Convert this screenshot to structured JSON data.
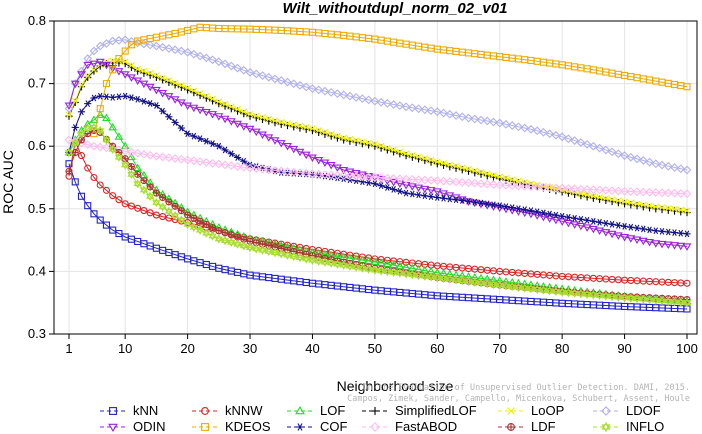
{
  "chart_data": {
    "type": "line",
    "title": "Wilt_withoutdupl_norm_02_v01",
    "xlabel": "Neighborhood size",
    "ylabel": "ROC AUC",
    "xlim": [
      1,
      100
    ],
    "ylim": [
      0.3,
      0.8
    ],
    "x_ticks": [
      1,
      10,
      20,
      30,
      40,
      50,
      60,
      70,
      80,
      90,
      100
    ],
    "y_ticks": [
      0.3,
      0.4,
      0.5,
      0.6,
      0.7,
      0.8
    ],
    "legend_position": "bottom",
    "credit_lines": [
      "Campos, Zimek, Sander, Campello, Micenkova, Schubert, Assent, Houle",
      "On the Evaluation of Unsupervised Outlier Detection. DAMI, 2015."
    ],
    "series": [
      {
        "name": "kNN",
        "color": "#2222cc",
        "marker": "square",
        "points": [
          [
            1,
            0.572
          ],
          [
            2,
            0.543
          ],
          [
            3,
            0.52
          ],
          [
            4,
            0.505
          ],
          [
            5,
            0.492
          ],
          [
            6,
            0.482
          ],
          [
            8,
            0.466
          ],
          [
            10,
            0.455
          ],
          [
            15,
            0.437
          ],
          [
            20,
            0.42
          ],
          [
            25,
            0.405
          ],
          [
            30,
            0.394
          ],
          [
            40,
            0.381
          ],
          [
            50,
            0.37
          ],
          [
            60,
            0.361
          ],
          [
            70,
            0.355
          ],
          [
            80,
            0.349
          ],
          [
            90,
            0.344
          ],
          [
            100,
            0.34
          ]
        ]
      },
      {
        "name": "kNNW",
        "color": "#dd2222",
        "marker": "circle",
        "points": [
          [
            1,
            0.552
          ],
          [
            2,
            0.607
          ],
          [
            3,
            0.585
          ],
          [
            4,
            0.565
          ],
          [
            5,
            0.55
          ],
          [
            6,
            0.538
          ],
          [
            8,
            0.521
          ],
          [
            10,
            0.508
          ],
          [
            15,
            0.49
          ],
          [
            20,
            0.478
          ],
          [
            25,
            0.465
          ],
          [
            30,
            0.452
          ],
          [
            40,
            0.435
          ],
          [
            50,
            0.42
          ],
          [
            60,
            0.409
          ],
          [
            70,
            0.4
          ],
          [
            80,
            0.392
          ],
          [
            90,
            0.386
          ],
          [
            100,
            0.381
          ]
        ]
      },
      {
        "name": "LOF",
        "color": "#22dd22",
        "marker": "triangle-up",
        "points": [
          [
            1,
            0.59
          ],
          [
            2,
            0.61
          ],
          [
            3,
            0.625
          ],
          [
            4,
            0.635
          ],
          [
            5,
            0.642
          ],
          [
            6,
            0.65
          ],
          [
            7,
            0.645
          ],
          [
            8,
            0.63
          ],
          [
            10,
            0.6
          ],
          [
            12,
            0.565
          ],
          [
            15,
            0.53
          ],
          [
            20,
            0.495
          ],
          [
            25,
            0.47
          ],
          [
            30,
            0.452
          ],
          [
            40,
            0.43
          ],
          [
            50,
            0.415
          ],
          [
            60,
            0.398
          ],
          [
            70,
            0.385
          ],
          [
            80,
            0.372
          ],
          [
            90,
            0.36
          ],
          [
            100,
            0.352
          ]
        ]
      },
      {
        "name": "SimplifiedLOF",
        "color": "#000000",
        "marker": "plus",
        "points": [
          [
            1,
            0.648
          ],
          [
            2,
            0.67
          ],
          [
            3,
            0.695
          ],
          [
            4,
            0.71
          ],
          [
            5,
            0.72
          ],
          [
            6,
            0.728
          ],
          [
            7,
            0.732
          ],
          [
            8,
            0.733
          ],
          [
            9,
            0.733
          ],
          [
            10,
            0.732
          ],
          [
            12,
            0.72
          ],
          [
            15,
            0.71
          ],
          [
            20,
            0.69
          ],
          [
            25,
            0.668
          ],
          [
            30,
            0.648
          ],
          [
            35,
            0.635
          ],
          [
            40,
            0.625
          ],
          [
            45,
            0.61
          ],
          [
            50,
            0.6
          ],
          [
            55,
            0.585
          ],
          [
            60,
            0.572
          ],
          [
            65,
            0.56
          ],
          [
            70,
            0.548
          ],
          [
            75,
            0.537
          ],
          [
            80,
            0.527
          ],
          [
            85,
            0.517
          ],
          [
            90,
            0.508
          ],
          [
            95,
            0.5
          ],
          [
            100,
            0.494
          ]
        ]
      },
      {
        "name": "LoOP",
        "color": "#eeee00",
        "marker": "cross",
        "points": [
          [
            1,
            0.65
          ],
          [
            2,
            0.672
          ],
          [
            3,
            0.698
          ],
          [
            4,
            0.712
          ],
          [
            5,
            0.722
          ],
          [
            6,
            0.73
          ],
          [
            7,
            0.735
          ],
          [
            8,
            0.736
          ],
          [
            9,
            0.736
          ],
          [
            10,
            0.735
          ],
          [
            12,
            0.723
          ],
          [
            15,
            0.713
          ],
          [
            20,
            0.693
          ],
          [
            25,
            0.671
          ],
          [
            30,
            0.651
          ],
          [
            35,
            0.638
          ],
          [
            40,
            0.628
          ],
          [
            45,
            0.613
          ],
          [
            50,
            0.603
          ],
          [
            55,
            0.588
          ],
          [
            60,
            0.575
          ],
          [
            65,
            0.563
          ],
          [
            70,
            0.551
          ],
          [
            75,
            0.54
          ],
          [
            80,
            0.53
          ],
          [
            85,
            0.52
          ],
          [
            90,
            0.511
          ],
          [
            95,
            0.503
          ],
          [
            100,
            0.497
          ]
        ]
      },
      {
        "name": "LDOF",
        "color": "#b0b0ee",
        "marker": "diamond",
        "points": [
          [
            1,
            0.66
          ],
          [
            2,
            0.7
          ],
          [
            3,
            0.72
          ],
          [
            4,
            0.74
          ],
          [
            5,
            0.752
          ],
          [
            6,
            0.76
          ],
          [
            8,
            0.768
          ],
          [
            10,
            0.77
          ],
          [
            12,
            0.765
          ],
          [
            15,
            0.76
          ],
          [
            20,
            0.75
          ],
          [
            25,
            0.735
          ],
          [
            30,
            0.718
          ],
          [
            35,
            0.705
          ],
          [
            40,
            0.692
          ],
          [
            45,
            0.682
          ],
          [
            50,
            0.672
          ],
          [
            55,
            0.663
          ],
          [
            60,
            0.655
          ],
          [
            65,
            0.645
          ],
          [
            70,
            0.637
          ],
          [
            75,
            0.627
          ],
          [
            80,
            0.615
          ],
          [
            85,
            0.6
          ],
          [
            90,
            0.585
          ],
          [
            95,
            0.572
          ],
          [
            100,
            0.562
          ]
        ]
      },
      {
        "name": "ODIN",
        "color": "#9922dd",
        "marker": "triangle-down",
        "points": [
          [
            1,
            0.665
          ],
          [
            2,
            0.7
          ],
          [
            3,
            0.715
          ],
          [
            4,
            0.73
          ],
          [
            5,
            0.732
          ],
          [
            6,
            0.735
          ],
          [
            8,
            0.725
          ],
          [
            10,
            0.715
          ],
          [
            15,
            0.69
          ],
          [
            20,
            0.665
          ],
          [
            25,
            0.648
          ],
          [
            30,
            0.628
          ],
          [
            35,
            0.605
          ],
          [
            40,
            0.582
          ],
          [
            45,
            0.562
          ],
          [
            50,
            0.55
          ],
          [
            55,
            0.538
          ],
          [
            60,
            0.528
          ],
          [
            65,
            0.512
          ],
          [
            70,
            0.502
          ],
          [
            75,
            0.492
          ],
          [
            80,
            0.48
          ],
          [
            85,
            0.468
          ],
          [
            90,
            0.455
          ],
          [
            95,
            0.445
          ],
          [
            100,
            0.44
          ]
        ]
      },
      {
        "name": "KDEOS",
        "color": "#eeaa00",
        "marker": "square",
        "points": [
          [
            5,
            0.62
          ],
          [
            6,
            0.66
          ],
          [
            7,
            0.7
          ],
          [
            8,
            0.722
          ],
          [
            9,
            0.74
          ],
          [
            10,
            0.752
          ],
          [
            11,
            0.762
          ],
          [
            12,
            0.768
          ],
          [
            14,
            0.772
          ],
          [
            16,
            0.776
          ],
          [
            18,
            0.78
          ],
          [
            20,
            0.785
          ],
          [
            22,
            0.79
          ],
          [
            25,
            0.788
          ],
          [
            30,
            0.787
          ],
          [
            35,
            0.785
          ],
          [
            40,
            0.782
          ],
          [
            45,
            0.777
          ],
          [
            50,
            0.771
          ],
          [
            55,
            0.763
          ],
          [
            60,
            0.755
          ],
          [
            65,
            0.749
          ],
          [
            70,
            0.743
          ],
          [
            75,
            0.737
          ],
          [
            80,
            0.73
          ],
          [
            85,
            0.722
          ],
          [
            90,
            0.713
          ],
          [
            95,
            0.704
          ],
          [
            100,
            0.695
          ]
        ]
      },
      {
        "name": "COF",
        "color": "#111188",
        "marker": "asterisk",
        "points": [
          [
            1,
            0.59
          ],
          [
            2,
            0.63
          ],
          [
            3,
            0.655
          ],
          [
            4,
            0.668
          ],
          [
            5,
            0.677
          ],
          [
            6,
            0.68
          ],
          [
            8,
            0.678
          ],
          [
            10,
            0.68
          ],
          [
            12,
            0.675
          ],
          [
            15,
            0.665
          ],
          [
            20,
            0.62
          ],
          [
            25,
            0.6
          ],
          [
            30,
            0.57
          ],
          [
            35,
            0.558
          ],
          [
            40,
            0.555
          ],
          [
            45,
            0.548
          ],
          [
            50,
            0.54
          ],
          [
            55,
            0.525
          ],
          [
            60,
            0.518
          ],
          [
            65,
            0.512
          ],
          [
            70,
            0.505
          ],
          [
            75,
            0.497
          ],
          [
            80,
            0.488
          ],
          [
            85,
            0.48
          ],
          [
            90,
            0.472
          ],
          [
            95,
            0.465
          ],
          [
            100,
            0.46
          ]
        ]
      },
      {
        "name": "FastABOD",
        "color": "#ffbbee",
        "marker": "diamond",
        "points": [
          [
            1,
            0.61
          ],
          [
            3,
            0.605
          ],
          [
            5,
            0.6
          ],
          [
            8,
            0.596
          ],
          [
            10,
            0.592
          ],
          [
            15,
            0.584
          ],
          [
            20,
            0.578
          ],
          [
            30,
            0.565
          ],
          [
            40,
            0.556
          ],
          [
            50,
            0.55
          ],
          [
            60,
            0.545
          ],
          [
            70,
            0.538
          ],
          [
            80,
            0.533
          ],
          [
            90,
            0.528
          ],
          [
            100,
            0.524
          ]
        ]
      },
      {
        "name": "LDF",
        "color": "#aa3333",
        "marker": "circle-plus",
        "points": [
          [
            1,
            0.56
          ],
          [
            2,
            0.59
          ],
          [
            3,
            0.61
          ],
          [
            4,
            0.62
          ],
          [
            5,
            0.625
          ],
          [
            6,
            0.622
          ],
          [
            8,
            0.6
          ],
          [
            10,
            0.58
          ],
          [
            12,
            0.555
          ],
          [
            15,
            0.525
          ],
          [
            20,
            0.49
          ],
          [
            25,
            0.465
          ],
          [
            30,
            0.448
          ],
          [
            40,
            0.425
          ],
          [
            50,
            0.405
          ],
          [
            60,
            0.39
          ],
          [
            70,
            0.378
          ],
          [
            80,
            0.368
          ],
          [
            90,
            0.36
          ],
          [
            100,
            0.355
          ]
        ]
      },
      {
        "name": "INFLO",
        "color": "#aadd33",
        "marker": "star",
        "points": [
          [
            1,
            0.59
          ],
          [
            2,
            0.605
          ],
          [
            3,
            0.62
          ],
          [
            4,
            0.628
          ],
          [
            5,
            0.63
          ],
          [
            6,
            0.625
          ],
          [
            8,
            0.595
          ],
          [
            10,
            0.57
          ],
          [
            12,
            0.54
          ],
          [
            15,
            0.51
          ],
          [
            20,
            0.475
          ],
          [
            25,
            0.452
          ],
          [
            30,
            0.438
          ],
          [
            35,
            0.428
          ],
          [
            40,
            0.418
          ],
          [
            50,
            0.402
          ],
          [
            60,
            0.39
          ],
          [
            70,
            0.378
          ],
          [
            80,
            0.367
          ],
          [
            90,
            0.358
          ],
          [
            100,
            0.35
          ]
        ]
      }
    ]
  }
}
